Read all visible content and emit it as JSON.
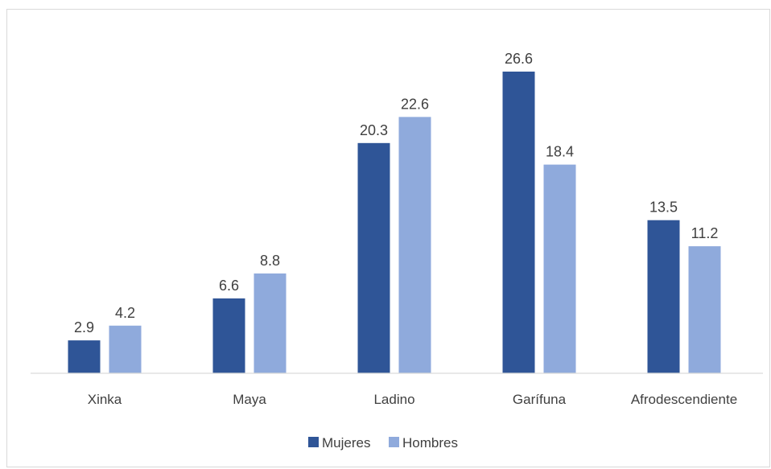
{
  "chart_data": {
    "type": "bar",
    "title": "",
    "xlabel": "",
    "ylabel": "",
    "categories": [
      "Xinka",
      "Maya",
      "Ladino",
      "Garífuna",
      "Afrodescendiente"
    ],
    "series": [
      {
        "name": "Mujeres",
        "values": [
          2.9,
          6.6,
          20.3,
          26.6,
          13.5
        ],
        "color": "#2f5597"
      },
      {
        "name": "Hombres",
        "values": [
          4.2,
          8.8,
          22.6,
          18.4,
          11.2
        ],
        "color": "#8faadc"
      }
    ],
    "ylim": [
      0,
      30
    ],
    "grid": false,
    "legend_position": "bottom",
    "axis_color": "#d9d9d9",
    "label_color": "#404040"
  }
}
